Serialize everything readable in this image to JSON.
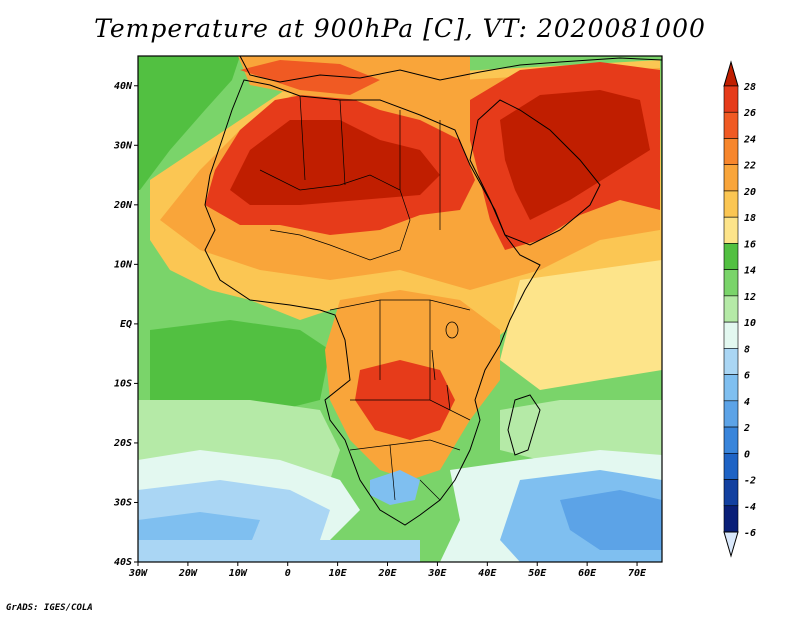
{
  "title": "Temperature at 900hPa [C], VT: 2020081000",
  "footer": "GrADS: IGES/COLA",
  "map": {
    "lon_ticks": [
      "30W",
      "20W",
      "10W",
      "0",
      "10E",
      "20E",
      "30E",
      "40E",
      "50E",
      "60E",
      "70E"
    ],
    "lat_ticks": [
      "40N",
      "30N",
      "20N",
      "10N",
      "EQ",
      "10S",
      "20S",
      "30S",
      "40S"
    ],
    "lon_range": [
      -30,
      75
    ],
    "lat_range": [
      -40,
      45
    ]
  },
  "colorbar": {
    "labels": [
      "28",
      "26",
      "24",
      "22",
      "20",
      "18",
      "16",
      "14",
      "12",
      "10",
      "8",
      "6",
      "4",
      "2",
      "0",
      "-2",
      "-4",
      "-6"
    ],
    "colors": [
      "#c01e00",
      "#e63b1a",
      "#f05a23",
      "#f7862c",
      "#f9a53a",
      "#fbc653",
      "#fde48a",
      "#52c041",
      "#7ad46a",
      "#b5eaa7",
      "#e3f8f0",
      "#aad6f4",
      "#7fbff0",
      "#5ca3e7",
      "#3985db",
      "#1e63c5",
      "#1240a0",
      "#0a1f78",
      "#d9e8fb"
    ]
  }
}
